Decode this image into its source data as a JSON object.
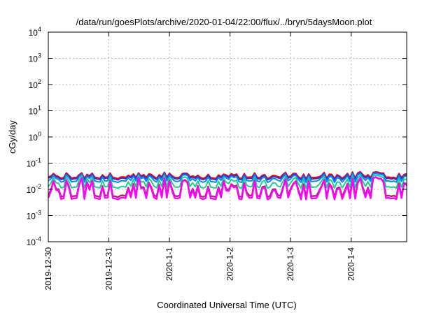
{
  "chart_data": {
    "type": "line",
    "title": "/data/run/goesPlots/archive/2020-01-04/22:00/flux/../bryn/5daysMoon.plot",
    "xlabel": "Coordinated Universal Time (UTC)",
    "ylabel": "cGy/day",
    "y_scale": "log",
    "ylim": [
      0.0001,
      10000
    ],
    "xlim": [
      "2019-12-30",
      "2020-01-04 22:00"
    ],
    "grid": true,
    "legend": "none",
    "x_ticks": [
      {
        "value": "2019-12-30",
        "label": "2019-12-30"
      },
      {
        "value": "2019-12-31",
        "label": "2019-12-31"
      },
      {
        "value": "2020-01-01",
        "label": "2020-1-1"
      },
      {
        "value": "2020-01-02",
        "label": "2020-1-2"
      },
      {
        "value": "2020-01-03",
        "label": "2020-1-3"
      },
      {
        "value": "2020-01-04",
        "label": "2020-1-4"
      }
    ],
    "y_ticks": [
      {
        "value": 0.0001,
        "base": "10",
        "exp": "-4"
      },
      {
        "value": 0.001,
        "base": "10",
        "exp": "-3"
      },
      {
        "value": 0.01,
        "base": "10",
        "exp": "-2"
      },
      {
        "value": 0.1,
        "base": "10",
        "exp": "-1"
      },
      {
        "value": 1,
        "base": "10",
        "exp": "0"
      },
      {
        "value": 10,
        "base": "10",
        "exp": "1"
      },
      {
        "value": 100,
        "base": "10",
        "exp": "2"
      },
      {
        "value": 1000,
        "base": "10",
        "exp": "3"
      },
      {
        "value": 10000,
        "base": "10",
        "exp": "4"
      }
    ],
    "series": [
      {
        "color": "#ff0000",
        "baseline": 0.028,
        "spike_to": 0.045
      },
      {
        "color": "#3333cc",
        "baseline": 0.025,
        "spike_to": 0.042
      },
      {
        "color": "#0088ff",
        "baseline": 0.02,
        "spike_to": 0.04
      },
      {
        "color": "#22cc99",
        "baseline": 0.012,
        "spike_to": 0.035
      },
      {
        "color": "#993366",
        "baseline": 0.0055,
        "spike_to": 0.03
      },
      {
        "color": "#ff00ff",
        "baseline": 0.0045,
        "spike_to": 0.03
      }
    ]
  }
}
